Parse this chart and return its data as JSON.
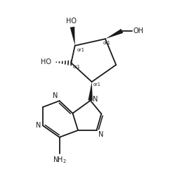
{
  "bg_color": "#ffffff",
  "line_color": "#1a1a1a",
  "line_width": 1.3,
  "font_size": 6.5,
  "figsize": [
    2.52,
    2.74
  ],
  "dpi": 100,
  "xlim": [
    0,
    10
  ],
  "ylim": [
    0,
    10.86
  ]
}
